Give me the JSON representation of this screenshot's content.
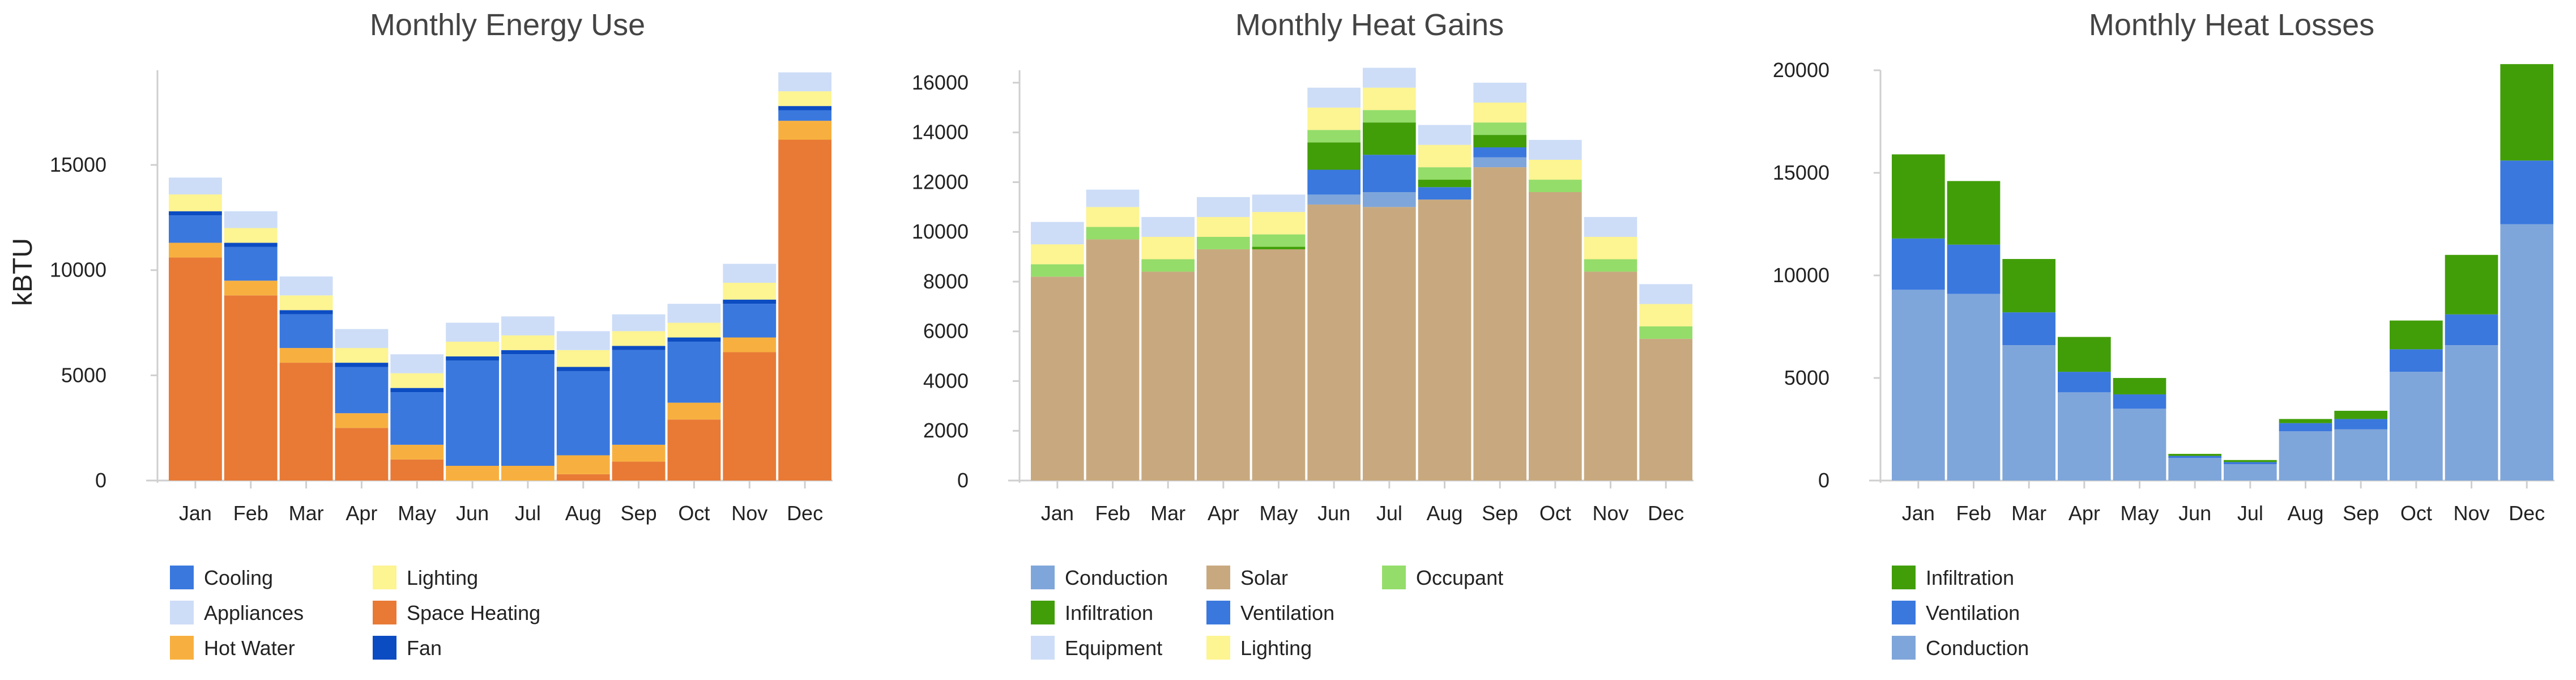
{
  "chart_data": [
    {
      "type": "bar",
      "stacked": true,
      "title": "Monthly Energy Use",
      "ylabel": "kBTU",
      "xlabel": "",
      "categories": [
        "Jan",
        "Feb",
        "Mar",
        "Apr",
        "May",
        "Jun",
        "Jul",
        "Aug",
        "Sep",
        "Oct",
        "Nov",
        "Dec"
      ],
      "ylim": [
        0,
        19500
      ],
      "yticks": [
        0,
        5000,
        10000,
        15000
      ],
      "grid": false,
      "legend_position": "bottom",
      "series": [
        {
          "name": "Space Heating",
          "color": "#e87a36",
          "values": [
            10600,
            8800,
            5600,
            2500,
            1000,
            0,
            0,
            300,
            900,
            2900,
            6100,
            16200
          ]
        },
        {
          "name": "Hot Water",
          "color": "#f7b03f",
          "values": [
            700,
            700,
            700,
            700,
            700,
            700,
            700,
            900,
            800,
            800,
            700,
            900
          ]
        },
        {
          "name": "Cooling",
          "color": "#3a78de",
          "values": [
            1300,
            1600,
            1600,
            2200,
            2500,
            5000,
            5300,
            4000,
            4500,
            2900,
            1600,
            500
          ]
        },
        {
          "name": "Fan",
          "color": "#0c4cc2",
          "values": [
            200,
            200,
            200,
            200,
            200,
            200,
            200,
            200,
            200,
            200,
            200,
            200
          ]
        },
        {
          "name": "Lighting",
          "color": "#fdf492",
          "values": [
            800,
            700,
            700,
            700,
            700,
            700,
            700,
            800,
            700,
            700,
            800,
            700
          ]
        },
        {
          "name": "Appliances",
          "color": "#cdddf7",
          "values": [
            800,
            800,
            900,
            900,
            900,
            900,
            900,
            900,
            800,
            900,
            900,
            900
          ]
        }
      ],
      "legend_order": [
        "Cooling",
        "Appliances",
        "Hot Water",
        "Lighting",
        "Space Heating",
        "Fan"
      ]
    },
    {
      "type": "bar",
      "stacked": true,
      "title": "Monthly Heat Gains",
      "ylabel": "",
      "xlabel": "",
      "categories": [
        "Jan",
        "Feb",
        "Mar",
        "Apr",
        "May",
        "Jun",
        "Jul",
        "Aug",
        "Sep",
        "Oct",
        "Nov",
        "Dec"
      ],
      "ylim": [
        0,
        16500
      ],
      "yticks": [
        0,
        2000,
        4000,
        6000,
        8000,
        10000,
        12000,
        14000,
        16000
      ],
      "grid": false,
      "legend_position": "bottom",
      "series": [
        {
          "name": "Solar",
          "color": "#c8a97f",
          "values": [
            8200,
            9700,
            8400,
            9300,
            9300,
            11100,
            11000,
            11300,
            12600,
            11600,
            8400,
            5700
          ]
        },
        {
          "name": "Conduction",
          "color": "#7fa6da",
          "values": [
            0,
            0,
            0,
            0,
            0,
            400,
            600,
            0,
            400,
            0,
            0,
            0
          ]
        },
        {
          "name": "Ventilation",
          "color": "#3a78de",
          "values": [
            0,
            0,
            0,
            0,
            0,
            1000,
            1500,
            500,
            400,
            0,
            0,
            0
          ]
        },
        {
          "name": "Infiltration",
          "color": "#419e08",
          "values": [
            0,
            0,
            0,
            0,
            100,
            1100,
            1300,
            300,
            500,
            0,
            0,
            0
          ]
        },
        {
          "name": "Occupant",
          "color": "#94dd6a",
          "values": [
            500,
            500,
            500,
            500,
            500,
            500,
            500,
            500,
            500,
            500,
            500,
            500
          ]
        },
        {
          "name": "Lighting",
          "color": "#fdf492",
          "values": [
            800,
            800,
            900,
            800,
            900,
            900,
            900,
            900,
            800,
            800,
            900,
            900
          ]
        },
        {
          "name": "Equipment",
          "color": "#cdddf7",
          "values": [
            900,
            700,
            800,
            800,
            700,
            800,
            800,
            800,
            800,
            800,
            800,
            800
          ]
        }
      ],
      "legend_order": [
        "Conduction",
        "Infiltration",
        "Equipment",
        "Solar",
        "Ventilation",
        "Lighting",
        "Occupant"
      ]
    },
    {
      "type": "bar",
      "stacked": true,
      "title": "Monthly Heat Losses",
      "ylabel": "",
      "xlabel": "",
      "categories": [
        "Jan",
        "Feb",
        "Mar",
        "Apr",
        "May",
        "Jun",
        "Jul",
        "Aug",
        "Sep",
        "Oct",
        "Nov",
        "Dec"
      ],
      "ylim": [
        0,
        20000
      ],
      "yticks": [
        0,
        5000,
        10000,
        15000,
        20000
      ],
      "grid": false,
      "legend_position": "bottom",
      "series": [
        {
          "name": "Conduction",
          "color": "#7fa6da",
          "values": [
            9300,
            9100,
            6600,
            4300,
            3500,
            1100,
            800,
            2400,
            2500,
            5300,
            6600,
            12500
          ]
        },
        {
          "name": "Ventilation",
          "color": "#3a78de",
          "values": [
            2500,
            2400,
            1600,
            1000,
            700,
            100,
            100,
            400,
            500,
            1100,
            1500,
            3100
          ]
        },
        {
          "name": "Infiltration",
          "color": "#419e08",
          "values": [
            4100,
            3100,
            2600,
            1700,
            800,
            100,
            100,
            200,
            400,
            1400,
            2900,
            4700
          ]
        }
      ],
      "legend_order": [
        "Infiltration",
        "Ventilation",
        "Conduction"
      ]
    }
  ]
}
